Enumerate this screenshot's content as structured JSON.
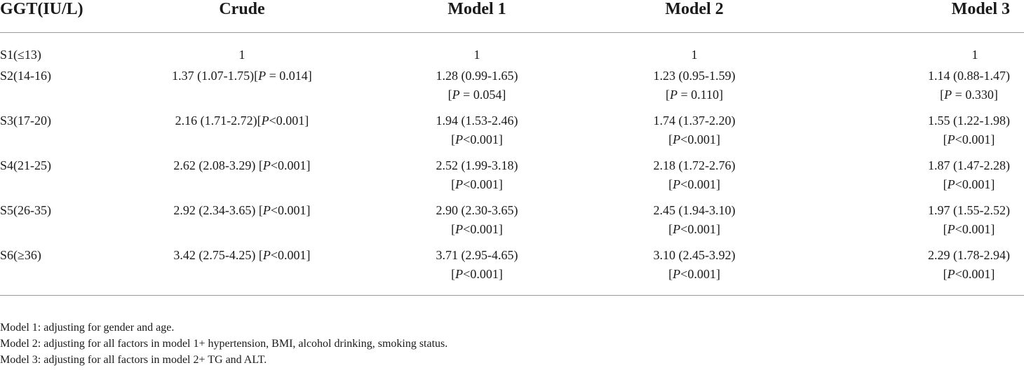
{
  "table": {
    "headers": [
      "GGT(IU/L)",
      "Crude",
      "Model 1",
      "Model 2",
      "Model 3"
    ],
    "rows": [
      {
        "label": "S1(≤13)",
        "crude": {
          "main": "1",
          "p": ""
        },
        "m1": {
          "main": "1",
          "p": ""
        },
        "m2": {
          "main": "1",
          "p": ""
        },
        "m3": {
          "main": "1",
          "p": ""
        }
      },
      {
        "label": "S2(14-16)",
        "crude": {
          "main": "1.37 (1.07-1.75)[",
          "p_label": "P",
          "p_rest": " = 0.014]"
        },
        "m1": {
          "main": "1.28 (0.99-1.65)",
          "p_open": "[",
          "p_label": "P",
          "p_rest": " = 0.054]"
        },
        "m2": {
          "main": "1.23 (0.95-1.59)",
          "p_open": "[",
          "p_label": "P",
          "p_rest": " = 0.110]"
        },
        "m3": {
          "main": "1.14 (0.88-1.47)",
          "p_open": "[",
          "p_label": "P",
          "p_rest": " = 0.330]"
        }
      },
      {
        "label": "S3(17-20)",
        "crude": {
          "main": "2.16 (1.71-2.72)[",
          "p_label": "P",
          "p_rest": "<0.001]"
        },
        "m1": {
          "main": "1.94 (1.53-2.46)",
          "p_open": "[",
          "p_label": "P",
          "p_rest": "<0.001]"
        },
        "m2": {
          "main": "1.74 (1.37-2.20)",
          "p_open": "[",
          "p_label": "P",
          "p_rest": "<0.001]"
        },
        "m3": {
          "main": "1.55 (1.22-1.98)",
          "p_open": "[",
          "p_label": "P",
          "p_rest": "<0.001]"
        }
      },
      {
        "label": "S4(21-25)",
        "crude": {
          "main": "2.62 (2.08-3.29) [",
          "p_label": "P",
          "p_rest": "<0.001]"
        },
        "m1": {
          "main": "2.52 (1.99-3.18)",
          "p_open": "[",
          "p_label": "P",
          "p_rest": "<0.001]"
        },
        "m2": {
          "main": "2.18 (1.72-2.76)",
          "p_open": "[",
          "p_label": "P",
          "p_rest": "<0.001]"
        },
        "m3": {
          "main": "1.87 (1.47-2.28)",
          "p_open": "[",
          "p_label": "P",
          "p_rest": "<0.001]"
        }
      },
      {
        "label": "S5(26-35)",
        "crude": {
          "main": "2.92 (2.34-3.65) [",
          "p_label": "P",
          "p_rest": "<0.001]"
        },
        "m1": {
          "main": "2.90 (2.30-3.65)",
          "p_open": "[",
          "p_label": "P",
          "p_rest": "<0.001]"
        },
        "m2": {
          "main": "2.45 (1.94-3.10)",
          "p_open": "[",
          "p_label": "P",
          "p_rest": "<0.001]"
        },
        "m3": {
          "main": "1.97 (1.55-2.52)",
          "p_open": "[",
          "p_label": "P",
          "p_rest": "<0.001]"
        }
      },
      {
        "label": "S6(≥36)",
        "crude": {
          "main": "3.42 (2.75-4.25) [",
          "p_label": "P",
          "p_rest": "<0.001]"
        },
        "m1": {
          "main": "3.71 (2.95-4.65)",
          "p_open": "[",
          "p_label": "P",
          "p_rest": "<0.001]"
        },
        "m2": {
          "main": "3.10 (2.45-3.92)",
          "p_open": "[",
          "p_label": "P",
          "p_rest": "<0.001]"
        },
        "m3": {
          "main": "2.29 (1.78-2.94)",
          "p_open": "[",
          "p_label": "P",
          "p_rest": "<0.001]"
        }
      }
    ]
  },
  "footnotes": [
    "Model 1: adjusting for gender and age.",
    "Model 2: adjusting for all factors in model 1+ hypertension, BMI, alcohol drinking, smoking status.",
    "Model 3: adjusting for all factors in model 2+ TG and ALT."
  ]
}
